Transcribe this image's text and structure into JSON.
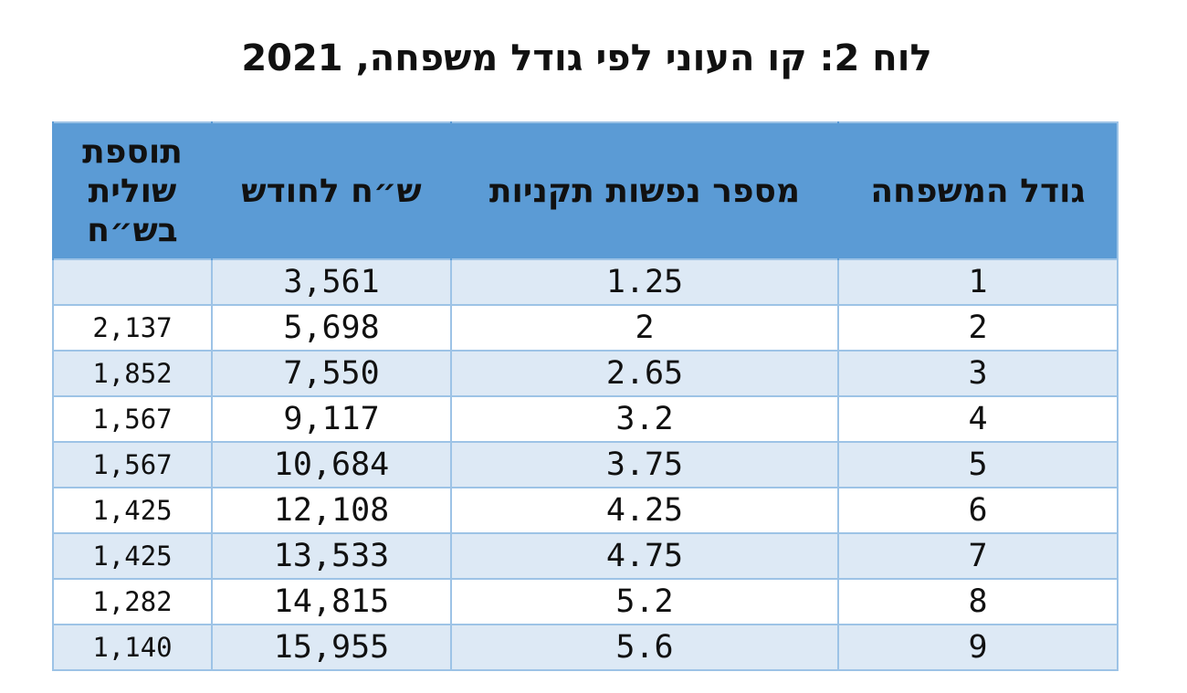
{
  "title": "לוח 2: קו העוני לפי גודל משפחה, 2021",
  "table": {
    "headers": {
      "family_size": "גודל המשפחה",
      "standard_persons": "מספר נפשות תקניות",
      "nis_per_month": "ש״ח לחודש",
      "marginal_addition": "תוספת שולית בש״ח"
    },
    "rows": [
      {
        "family_size": "1",
        "standard_persons": "1.25",
        "nis_per_month": "3,561",
        "marginal_addition": ""
      },
      {
        "family_size": "2",
        "standard_persons": "2",
        "nis_per_month": "5,698",
        "marginal_addition": "2,137"
      },
      {
        "family_size": "3",
        "standard_persons": "2.65",
        "nis_per_month": "7,550",
        "marginal_addition": "1,852"
      },
      {
        "family_size": "4",
        "standard_persons": "3.2",
        "nis_per_month": "9,117",
        "marginal_addition": "1,567"
      },
      {
        "family_size": "5",
        "standard_persons": "3.75",
        "nis_per_month": "10,684",
        "marginal_addition": "1,567"
      },
      {
        "family_size": "6",
        "standard_persons": "4.25",
        "nis_per_month": "12,108",
        "marginal_addition": "1,425"
      },
      {
        "family_size": "7",
        "standard_persons": "4.75",
        "nis_per_month": "13,533",
        "marginal_addition": "1,425"
      },
      {
        "family_size": "8",
        "standard_persons": "5.2",
        "nis_per_month": "14,815",
        "marginal_addition": "1,282"
      },
      {
        "family_size": "9",
        "standard_persons": "5.6",
        "nis_per_month": "15,955",
        "marginal_addition": "1,140"
      }
    ]
  },
  "colors": {
    "header_background": "#5b9bd5",
    "odd_row_background": "#dde9f5",
    "even_row_background": "#ffffff",
    "grid_line": "#9dc3e6"
  }
}
